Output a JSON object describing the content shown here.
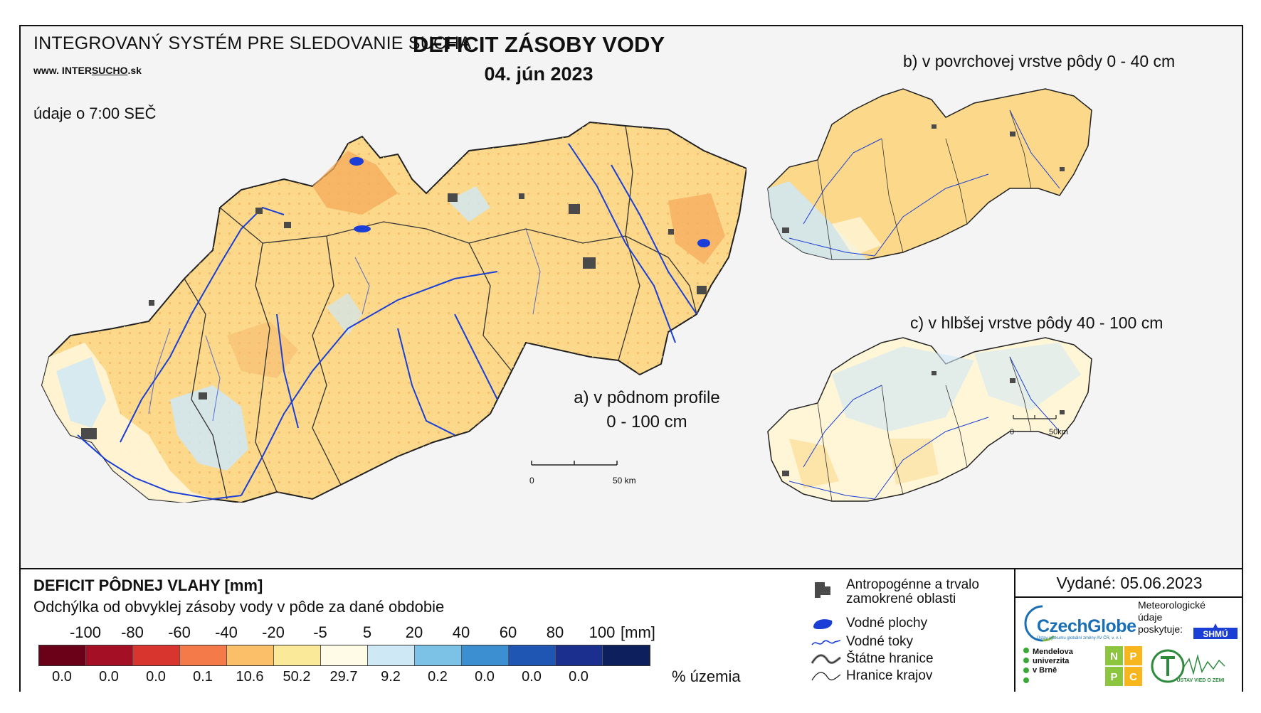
{
  "header": {
    "system_title": "INTEGROVANÝ SYSTÉM PRE SLEDOVANIE SUCHA",
    "website_prefix": "www. INTER",
    "website_highlight": "SUCHO",
    "website_suffix": ".sk",
    "obs_time": "údaje o 7:00 SEČ",
    "main_title": "DEFICIT ZÁSOBY VODY",
    "date": "04. jún 2023"
  },
  "maps": {
    "a_label_line1": "a) v pôdnom profile",
    "a_label_line2": "0 - 100 cm",
    "b_label": "b) v povrchovej vrstve pôdy 0 - 40 cm",
    "c_label": "c) v hlbšej vrstve pôdy 40 - 100 cm",
    "scale_main_zero": "0",
    "scale_main_end": "50 km",
    "scale_small_zero": "0",
    "scale_small_end": "50km"
  },
  "legend": {
    "title": "DEFICIT PÔDNEJ VLAHY [mm]",
    "subtitle": "Odchýlka od obvyklej zásoby vody v pôde za dané obdobie",
    "ticks": [
      "-100",
      "-80",
      "-60",
      "-40",
      "-20",
      "-5",
      "5",
      "20",
      "40",
      "60",
      "80",
      "100"
    ],
    "unit": "[mm]",
    "colors": [
      "#6b0019",
      "#a50f25",
      "#d7352e",
      "#f47a4a",
      "#fbbf6a",
      "#fbe99a",
      "#fffbe6",
      "#cfe8f5",
      "#7cc2e6",
      "#3c8fd0",
      "#1f55b3",
      "#1b2f8f",
      "#0d1f5c"
    ],
    "percentages": [
      "0.0",
      "0.0",
      "0.0",
      "0.1",
      "10.6",
      "50.2",
      "29.7",
      "9.2",
      "0.2",
      "0.0",
      "0.0",
      "0.0"
    ],
    "pct_label": "% územia"
  },
  "symbols": {
    "urban": "Antropogénne a trvalo zamokrené oblasti",
    "urban_l1": "Antropogénne a trvalo",
    "urban_l2": "zamokrené oblasti",
    "water_bodies": "Vodné plochy",
    "rivers": "Vodné toky",
    "state_border": "Štátne hranice",
    "region_border": "Hranice krajov"
  },
  "footer": {
    "issued": "Vydané: 05.06.2023",
    "czechglobe": "CzechGlobe",
    "czechglobe_sub": "Ústav výzkumu globální změny AV ČR, v. v. i.",
    "meteo_l1": "Meteorologické",
    "meteo_l2": "údaje",
    "meteo_l3": "poskytuje:",
    "shmu": "SHMÚ",
    "mendel_l1": "Mendelova",
    "mendel_l2": "univerzita",
    "mendel_l3": "v Brně",
    "nppc": [
      "N",
      "P",
      "P",
      "C"
    ],
    "uvz": "ÚSTAV VIED O ZEMI"
  }
}
